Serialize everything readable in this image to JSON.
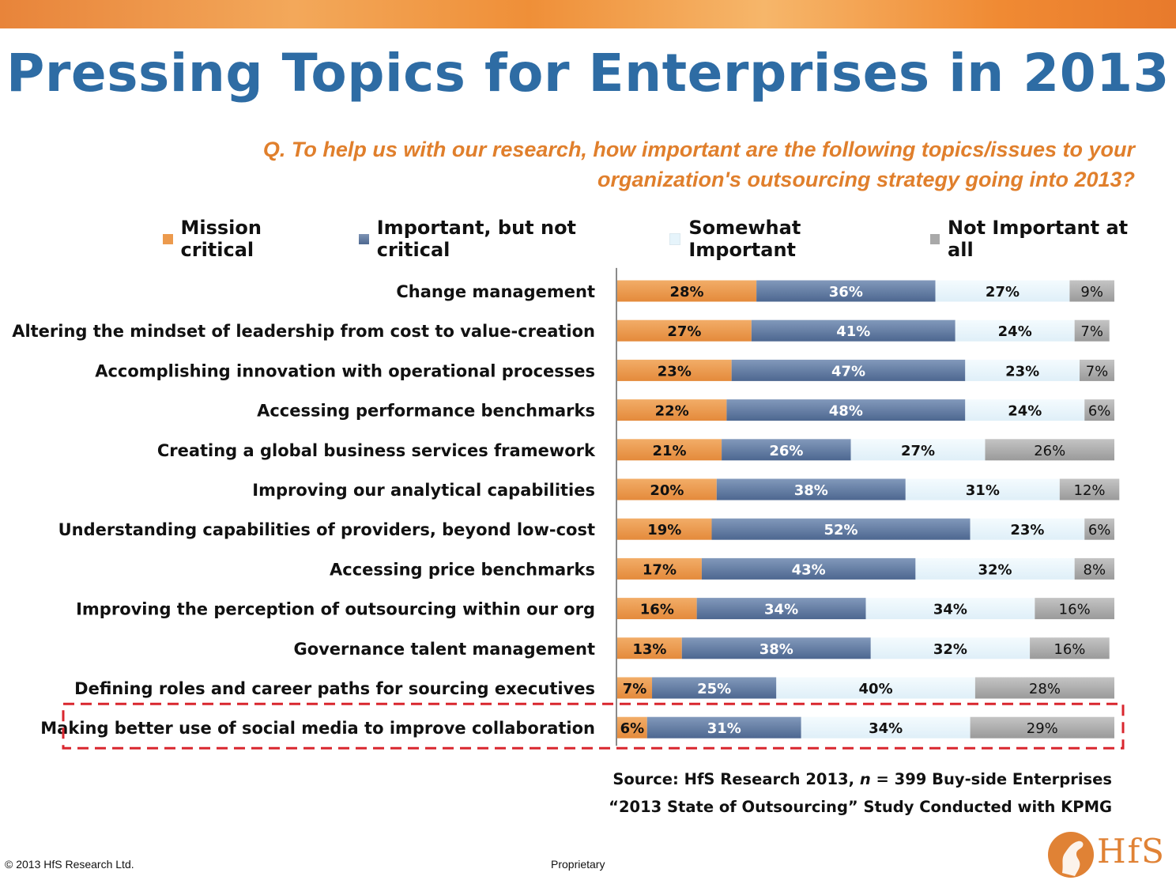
{
  "title": "Pressing Topics for Enterprises in 2013",
  "question_line1": "Q. To help us with our research, how important are the following topics/issues to your",
  "question_line2": "organization's outsourcing strategy going into 2013?",
  "colors": {
    "mission_critical": "#ec9a4d",
    "important": "#5a7399",
    "somewhat": "#e6f4fb",
    "not_important": "#a9a9a9",
    "title": "#2e6ca4",
    "question": "#e07f2c",
    "highlight": "#d9262e"
  },
  "chart_data": {
    "type": "bar",
    "orientation": "horizontal",
    "stacked": true,
    "legend_position": "top",
    "xlim": [
      0,
      100
    ],
    "unit": "%",
    "categories": [
      "Change management",
      "Altering the mindset of leadership from cost to value-creation",
      "Accomplishing innovation with operational processes",
      "Accessing performance benchmarks",
      "Creating a global business services framework",
      "Improving our analytical capabilities",
      "Understanding capabilities of providers, beyond low-cost",
      "Accessing price benchmarks",
      "Improving the perception of outsourcing within our org",
      "Governance talent management",
      "Defining roles and career paths for sourcing executives",
      "Making better use of social media to improve collaboration"
    ],
    "series": [
      {
        "name": "Mission critical",
        "values": [
          28,
          27,
          23,
          22,
          21,
          20,
          19,
          17,
          16,
          13,
          7,
          6
        ]
      },
      {
        "name": "Important, but not critical",
        "values": [
          36,
          41,
          47,
          48,
          26,
          38,
          52,
          43,
          34,
          38,
          25,
          31
        ]
      },
      {
        "name": "Somewhat Important",
        "values": [
          27,
          24,
          23,
          24,
          27,
          31,
          23,
          32,
          34,
          32,
          40,
          34
        ]
      },
      {
        "name": "Not Important at all",
        "values": [
          9,
          7,
          7,
          6,
          26,
          12,
          6,
          8,
          16,
          16,
          28,
          29
        ]
      }
    ],
    "highlighted_category": "Making better use of social media to improve collaboration"
  },
  "source_line1_prefix": "Source: HfS Research 2013, ",
  "source_line1_n": "n",
  "source_line1_suffix": " = 399 Buy-side Enterprises",
  "source_line2": "“2013 State of Outsourcing” Study Conducted with KPMG",
  "footer_copyright": "© 2013 HfS Research Ltd.",
  "footer_proprietary": "Proprietary",
  "logo_text": "HfS"
}
